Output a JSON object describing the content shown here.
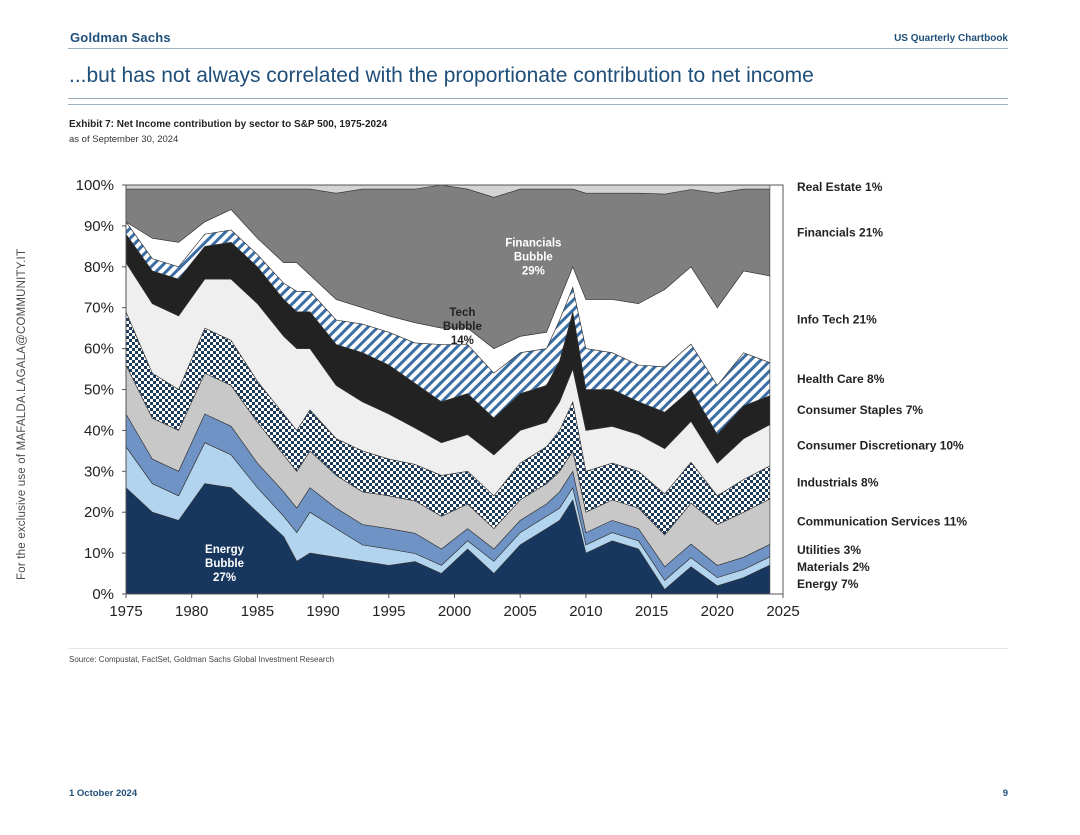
{
  "header": {
    "brand": "Goldman Sachs",
    "report": "US Quarterly Chartbook"
  },
  "headline": "...but has not always correlated with the proportionate contribution to net income",
  "exhibit": {
    "title": "Exhibit 7: Net Income contribution by sector to S&P 500, 1975-2024",
    "as_of": "as of September 30, 2024"
  },
  "watermark": "For the exclusive use of MAFALDA.LAGALA@COMMUNITY.IT",
  "footer": {
    "source": "Source: Compustat, FactSet, Goldman Sachs Global Investment Research",
    "date": "1 October 2024",
    "page": "9"
  },
  "chart_data": {
    "type": "area",
    "stacked": true,
    "percent": true,
    "title": "Net Income contribution by sector to S&P 500, 1975-2024",
    "x": [
      1975,
      1977,
      1979,
      1981,
      1983,
      1985,
      1987,
      1988,
      1989,
      1991,
      1993,
      1995,
      1997,
      1999,
      2001,
      2003,
      2005,
      2007,
      2008,
      2009,
      2010,
      2012,
      2014,
      2016,
      2018,
      2020,
      2022,
      2024
    ],
    "xlim": [
      1975,
      2025
    ],
    "xticks": [
      1975,
      1980,
      1985,
      1990,
      1995,
      2000,
      2005,
      2010,
      2015,
      2020,
      2025
    ],
    "ylim": [
      0,
      100
    ],
    "yticks": [
      "0%",
      "10%",
      "20%",
      "30%",
      "40%",
      "50%",
      "60%",
      "70%",
      "80%",
      "90%",
      "100%"
    ],
    "series": [
      {
        "name": "Energy",
        "legend": "Energy 7%",
        "color": "#17375e",
        "fill": "solid",
        "values": [
          26,
          20,
          18,
          27,
          26,
          20,
          14,
          8,
          10,
          9,
          8,
          7,
          8,
          5,
          11,
          5,
          12,
          16,
          18,
          23,
          10,
          13,
          11,
          1,
          6,
          2,
          4,
          7
        ]
      },
      {
        "name": "Materials",
        "legend": "Materials 2%",
        "color": "#b3d4ee",
        "fill": "solid",
        "values": [
          10,
          7,
          6,
          10,
          8,
          6,
          5,
          7,
          10,
          7,
          4,
          4,
          2,
          2,
          2,
          3,
          3,
          3,
          3,
          3,
          2,
          2,
          2,
          2,
          2,
          2,
          2,
          2
        ]
      },
      {
        "name": "Utilities",
        "legend": "Utilities 3%",
        "color": "#6e93c4",
        "fill": "solid",
        "values": [
          8,
          6,
          6,
          7,
          7,
          6,
          6,
          6,
          6,
          5,
          5,
          5,
          5,
          4,
          3,
          3,
          3,
          3,
          4,
          4,
          3,
          3,
          3,
          3,
          3,
          3,
          3,
          3
        ]
      },
      {
        "name": "Communication Services",
        "legend": "Communication Services 11%",
        "color": "#c8c8c8",
        "fill": "solid",
        "values": [
          12,
          10,
          10,
          10,
          10,
          10,
          9,
          9,
          9,
          8,
          8,
          8,
          8,
          8,
          6,
          5,
          5,
          5,
          5,
          5,
          5,
          5,
          5,
          7,
          9,
          10,
          11,
          11
        ]
      },
      {
        "name": "Industrials",
        "legend": "Industrials 8%",
        "color": "#1f3b5a",
        "fill": "check",
        "values": [
          13,
          11,
          10,
          11,
          11,
          10,
          10,
          10,
          10,
          9,
          10,
          9,
          9,
          10,
          8,
          8,
          9,
          9,
          10,
          12,
          10,
          9,
          9,
          9,
          9,
          7,
          8,
          8
        ]
      },
      {
        "name": "Consumer Discretionary",
        "legend": "Consumer Discretionary 10%",
        "color": "#efefef",
        "fill": "solid",
        "values": [
          12,
          17,
          18,
          12,
          15,
          19,
          19,
          20,
          15,
          13,
          12,
          11,
          9,
          8,
          9,
          10,
          8,
          6,
          7,
          8,
          10,
          9,
          9,
          10,
          9,
          8,
          10,
          10
        ]
      },
      {
        "name": "Consumer Staples",
        "legend": "Consumer Staples 7%",
        "color": "#222222",
        "fill": "solid",
        "values": [
          7,
          8,
          9,
          8,
          9,
          9,
          9,
          9,
          9,
          10,
          12,
          12,
          11,
          10,
          10,
          9,
          9,
          9,
          10,
          14,
          10,
          9,
          8,
          8,
          7,
          7,
          8,
          7
        ]
      },
      {
        "name": "Health Care",
        "legend": "Health Care 8%",
        "color": "#3a6ea5",
        "fill": "hatch",
        "values": [
          3,
          3,
          3,
          3,
          3,
          3,
          4,
          5,
          5,
          6,
          7,
          8,
          10,
          14,
          12,
          11,
          10,
          9,
          10,
          6,
          10,
          9,
          9,
          10,
          10,
          12,
          13,
          8
        ]
      },
      {
        "name": "Info Tech",
        "legend": "Info Tech 21%",
        "color": "#ffffff",
        "fill": "solid",
        "values": [
          0,
          5,
          6,
          3,
          5,
          4,
          5,
          7,
          4,
          5,
          4,
          4,
          5,
          4,
          4,
          6,
          4,
          4,
          5,
          5,
          12,
          13,
          15,
          17,
          17,
          19,
          20,
          21
        ]
      },
      {
        "name": "Financials",
        "legend": "Financials 21%",
        "color": "#7f7f7f",
        "fill": "solid",
        "values": [
          8,
          12,
          13,
          8,
          5,
          12,
          18,
          18,
          21,
          26,
          29,
          31,
          33,
          35,
          34,
          37,
          36,
          35,
          27,
          19,
          26,
          26,
          27,
          21,
          17,
          28,
          20,
          21
        ]
      },
      {
        "name": "Real Estate",
        "legend": "Real Estate 1%",
        "color": "#d4d4d4",
        "fill": "solid",
        "values": [
          1,
          1,
          1,
          1,
          1,
          1,
          1,
          1,
          1,
          2,
          1,
          1,
          1,
          0,
          1,
          3,
          1,
          1,
          1,
          1,
          2,
          2,
          2,
          2,
          1,
          2,
          1,
          1
        ]
      }
    ],
    "annotations": [
      {
        "text": [
          "Energy",
          "Bubble",
          "27%"
        ],
        "x": 1982.5,
        "y": 10,
        "color": "#ffffff"
      },
      {
        "text": [
          "Tech",
          "Bubble",
          "14%"
        ],
        "x": 2000.6,
        "y": 68,
        "color": "#222222"
      },
      {
        "text": [
          "Financials",
          "Bubble",
          "29%"
        ],
        "x": 2006,
        "y": 85,
        "color": "#ffffff"
      }
    ]
  }
}
